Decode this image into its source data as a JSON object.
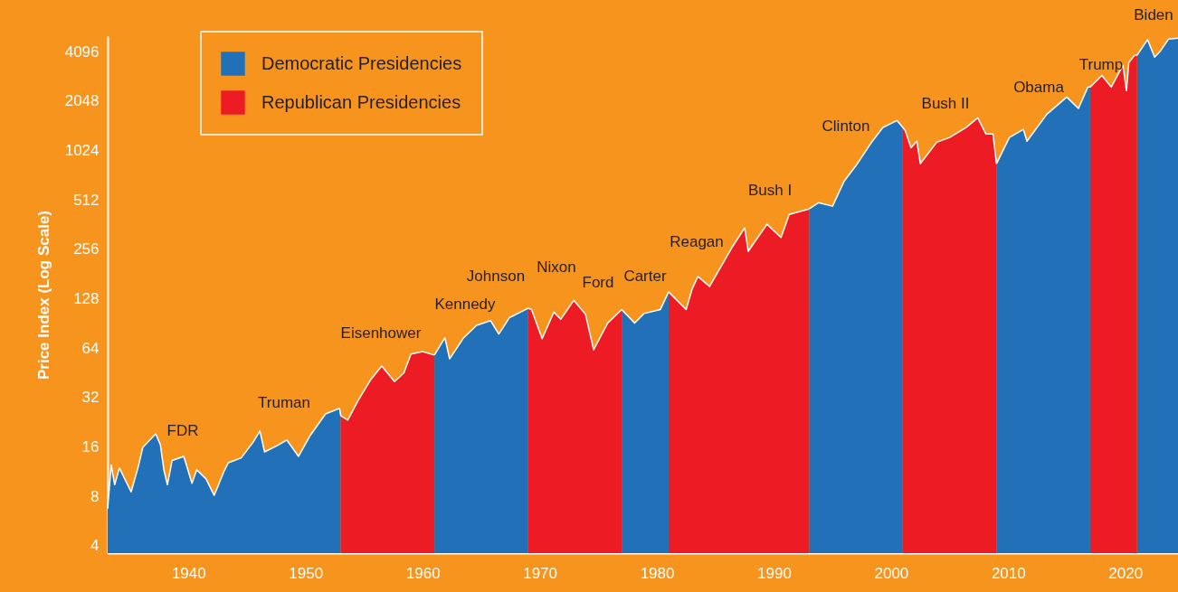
{
  "chart_data": {
    "type": "area",
    "ylabel": "Price Index (Log Scale)",
    "log": true,
    "grid": false,
    "legend": "top left",
    "xlim": [
      1933.1,
      2024.5
    ],
    "xticks": [
      1940,
      1950,
      1960,
      1970,
      1980,
      1990,
      2000,
      2010,
      2020
    ],
    "ylim": [
      3.6,
      5100
    ],
    "yticks": [
      4,
      8,
      16,
      32,
      64,
      128,
      256,
      512,
      1024,
      2048,
      4096
    ],
    "series": [
      {
        "name": "Democratic Presidencies",
        "color": "#2271b8",
        "x": [
          1933.1,
          1933.4,
          1933.7,
          1934.1,
          1935.1,
          1935.7,
          1936.1,
          1937.2,
          1937.6,
          1937.9,
          1938.2,
          1938.6,
          1939.6,
          1940.3,
          1940.7,
          1941.5,
          1942.2,
          1943.0,
          1943.4,
          1944.5,
          1945.5,
          1946.1,
          1946.5,
          1947.6,
          1948.4,
          1949.4,
          1950.4,
          1951.7,
          1952.9,
          1953.0,
          1957.0,
          1961.0,
          1961.9,
          1962.3,
          1963.5,
          1964.6,
          1965.8,
          1966.5,
          1967.4,
          1968.8,
          1969.0,
          1973.0,
          1977.0,
          1978.1,
          1978.9,
          1980.3,
          1981.0,
          1987.0,
          1993.0,
          1993.8,
          1995.0,
          1996.0,
          1997.0,
          1998.4,
          1999.3,
          2000.5,
          2001.0,
          2005.0,
          2009.0,
          2010.1,
          2011.3,
          2011.6,
          2013.3,
          2015.0,
          2016.0,
          2016.8,
          2017.0,
          2019.0,
          2021.0,
          2021.9,
          2022.5,
          2023.0,
          2023.7,
          2024.5
        ],
        "values": [
          6.7,
          12.4,
          9.4,
          11.9,
          8.5,
          12.0,
          15.9,
          19.2,
          16.5,
          11.6,
          9.4,
          13.2,
          14.0,
          9.6,
          11.6,
          10.2,
          8.1,
          11.2,
          12.8,
          13.7,
          17.0,
          20.0,
          14.9,
          16.3,
          17.6,
          14.0,
          18.8,
          25.4,
          27.5,
          24.8,
          null,
          58,
          74,
          55,
          74,
          88,
          94,
          78,
          98,
          110,
          112,
          null,
          110,
          91,
          104,
          110,
          141,
          null,
          451,
          492,
          469,
          668,
          828,
          1168,
          1415,
          1560,
          1415,
          null,
          852,
          1230,
          1378,
          1168,
          1705,
          2170,
          1847,
          2495,
          2495,
          null,
          3900,
          4860,
          3800,
          4140,
          4900,
          4950
        ]
      },
      {
        "name": "Republican Presidencies",
        "color": "#ed1c24",
        "x": [
          1953.0,
          1953.6,
          1954.5,
          1955.6,
          1956.5,
          1957.6,
          1958.4,
          1959.0,
          1960.0,
          1961.0,
          1965.0,
          1969.0,
          1969.3,
          1970.2,
          1971.2,
          1971.8,
          1972.9,
          1973.9,
          1974.6,
          1975.8,
          1977.0,
          1979.0,
          1981.0,
          1982.5,
          1983.0,
          1983.5,
          1984.5,
          1986.4,
          1987.5,
          1987.8,
          1989.4,
          1990.6,
          1991.3,
          1993.0,
          1997.0,
          2001.0,
          2001.2,
          2001.7,
          2002.2,
          2002.5,
          2003.9,
          2005.0,
          2006.4,
          2007.4,
          2008.1,
          2008.7,
          2009.0,
          2013.0,
          2017.0,
          2018.0,
          2018.8,
          2019.8,
          2020.1,
          2020.3,
          2020.8,
          2021.0
        ],
        "values": [
          24.8,
          23.3,
          30.8,
          41.4,
          49.7,
          40.0,
          45.2,
          58.8,
          61,
          58,
          null,
          112,
          110,
          73,
          106,
          96,
          125,
          103,
          62.5,
          91,
          110,
          null,
          141,
          110,
          146,
          175,
          152,
          262,
          346,
          249,
          364,
          302,
          418,
          451,
          null,
          1415,
          1357,
          1065,
          1168,
          852,
          1150,
          1230,
          1415,
          1622,
          1290,
          1290,
          852,
          null,
          2495,
          2940,
          2495,
          3390,
          2372,
          3520,
          3900,
          3900
        ]
      }
    ],
    "annotations": [
      "FDR",
      "Truman",
      "Eisenhower",
      "Kennedy",
      "Johnson",
      "Nixon",
      "Ford",
      "Carter",
      "Reagan",
      "Bush I",
      "Clinton",
      "Bush II",
      "Obama",
      "Trump",
      "Biden"
    ]
  }
}
